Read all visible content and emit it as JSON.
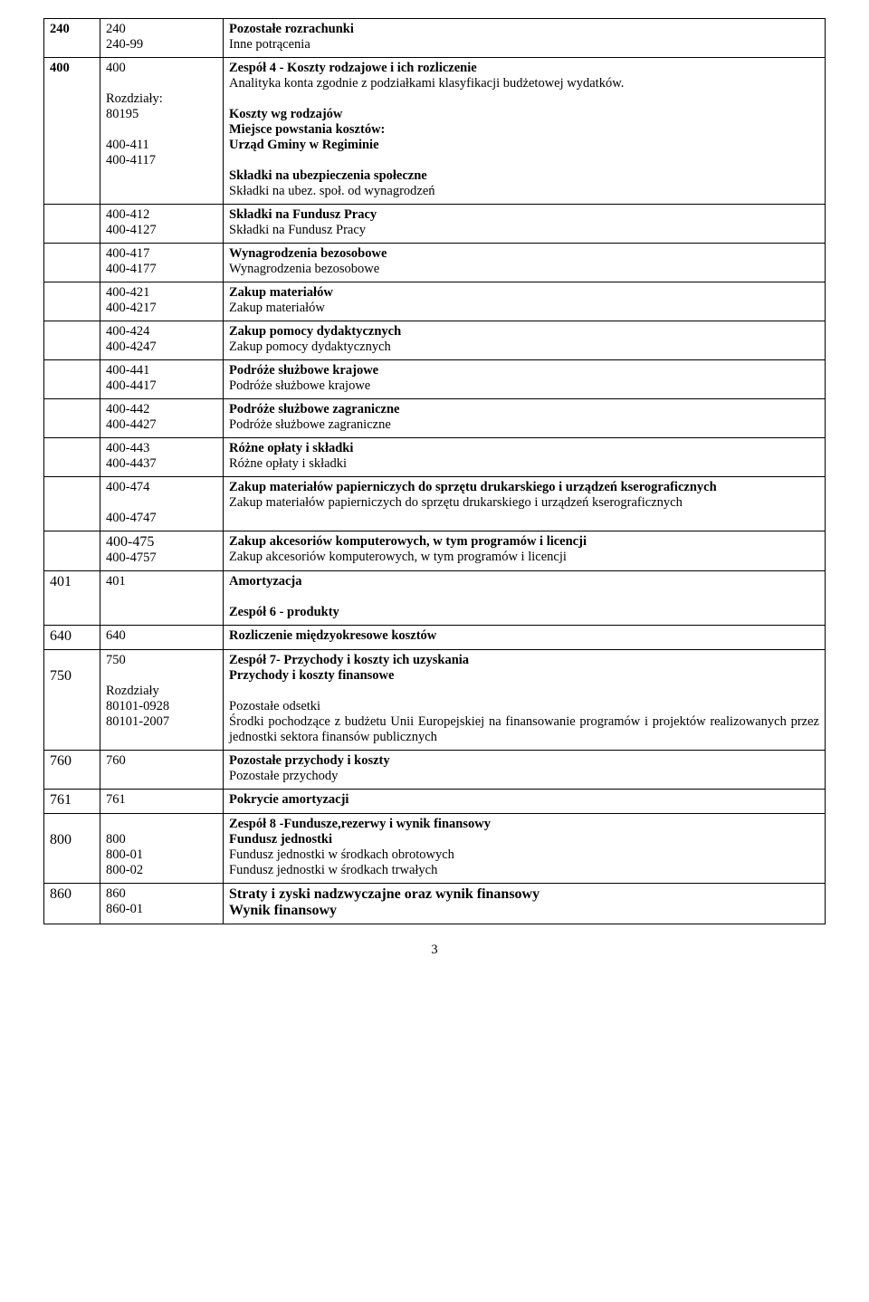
{
  "rows": [
    {
      "c1": [
        "240"
      ],
      "c2": [
        "240",
        "240-99"
      ],
      "c3b": "Pozostałe rozrachunki",
      "c3": [
        "Inne potrącenia"
      ]
    },
    {
      "c1": [
        "400"
      ],
      "c2": [
        "400",
        " ",
        "Rozdziały:",
        "80195",
        " ",
        "400-411",
        "400-4117"
      ],
      "c3b": "Zespół 4 - Koszty rodzajowe i ich rozliczenie",
      "c3": [
        "Analityka konta zgodnie z podziałkami klasyfikacji budżetowej wydatków.",
        " ",
        "{b}Koszty wg rodzajów",
        "{b}Miejsce powstania kosztów:",
        "{b}Urząd Gminy w Regiminie",
        " ",
        "{b}Składki na ubezpieczenia społeczne",
        "Składki na ubez. społ. od wynagrodzeń"
      ]
    },
    {
      "c1": [],
      "c2": [
        "400-412",
        "400-4127"
      ],
      "c3b": "Składki na Fundusz Pracy",
      "c3": [
        "Składki na Fundusz Pracy"
      ]
    },
    {
      "c1": [],
      "c2": [
        "400-417",
        "400-4177"
      ],
      "c3b": "Wynagrodzenia bezosobowe",
      "c3": [
        "Wynagrodzenia bezosobowe"
      ]
    },
    {
      "c1": [],
      "c2": [
        "400-421",
        "400-4217"
      ],
      "c3b": "Zakup materiałów",
      "c3": [
        "Zakup materiałów"
      ]
    },
    {
      "c1": [],
      "c2": [
        "400-424",
        "400-4247"
      ],
      "c3b": "Zakup pomocy dydaktycznych",
      "c3": [
        "Zakup pomocy dydaktycznych"
      ]
    },
    {
      "c1": [],
      "c2": [
        "400-441",
        "400-4417"
      ],
      "c3b": "Podróże służbowe krajowe",
      "c3": [
        "Podróże służbowe krajowe"
      ]
    },
    {
      "c1": [],
      "c2": [
        "400-442",
        "400-4427"
      ],
      "c3b": "Podróże służbowe zagraniczne",
      "c3": [
        "Podróże służbowe zagraniczne"
      ]
    },
    {
      "c1": [],
      "c2": [
        "400-443",
        "400-4437"
      ],
      "c3b": "Różne opłaty i składki",
      "c3": [
        "Różne opłaty i składki"
      ]
    },
    {
      "c1": [],
      "c2": [
        "400-474",
        " ",
        "400-4747"
      ],
      "c3b": "Zakup materiałów papierniczych do sprzętu drukarskiego i urządzeń kserograficznych",
      "c3": [
        "Zakup materiałów papierniczych do sprzętu drukarskiego i urządzeń kserograficznych"
      ]
    },
    {
      "c1": [],
      "c2": [
        "{l}400-475",
        "400-4757"
      ],
      "c3b": "Zakup akcesoriów komputerowych, w tym programów i licencji",
      "c3": [
        "Zakup akcesoriów komputerowych, w tym programów i licencji"
      ]
    },
    {
      "c1": [
        "{l}401"
      ],
      "c2": [
        "401"
      ],
      "c3b": "Amortyzacja",
      "c3": [
        " ",
        "{b}Zespół 6 - produkty"
      ]
    },
    {
      "c1": [
        "{l}640"
      ],
      "c2": [
        "640"
      ],
      "c3b": "Rozliczenie międzyokresowe kosztów",
      "c3": []
    },
    {
      "c1": [
        " ",
        "{l}750"
      ],
      "c2": [
        "750",
        " ",
        "Rozdziały",
        "80101-0928",
        "80101-2007"
      ],
      "c3b": "Zespół 7- Przychody i koszty ich uzyskania",
      "c3": [
        "{b}Przychody i koszty finansowe",
        " ",
        "Pozostałe odsetki",
        "Środki pochodzące z budżetu Unii Europejskiej na finansowanie programów i projektów realizowanych przez jednostki sektora finansów publicznych"
      ]
    },
    {
      "c1": [
        "{l}760"
      ],
      "c2": [
        "760"
      ],
      "c3b": "Pozostałe przychody i koszty",
      "c3": [
        "Pozostałe przychody"
      ]
    },
    {
      "c1": [
        "{l}761"
      ],
      "c2": [
        "761"
      ],
      "c3b": "Pokrycie amortyzacji",
      "c3": []
    },
    {
      "c1": [
        " ",
        "{l}800"
      ],
      "c2": [
        " ",
        "800",
        "800-01",
        "800-02"
      ],
      "c3b": "Zespół 8 -Fundusze,rezerwy i wynik finansowy",
      "c3": [
        "{b}Fundusz jednostki",
        "Fundusz jednostki w środkach obrotowych",
        "Fundusz jednostki w środkach trwałych"
      ]
    },
    {
      "c1": [
        "{l}860"
      ],
      "c2": [
        "860",
        "860-01"
      ],
      "c3lb": "Straty i zyski nadzwyczajne oraz wynik finansowy",
      "c3": [
        "{lb}Wynik  finansowy"
      ]
    }
  ],
  "pagenum": "3"
}
